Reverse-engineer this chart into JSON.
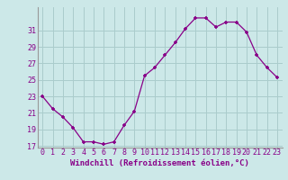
{
  "x": [
    0,
    1,
    2,
    3,
    4,
    5,
    6,
    7,
    8,
    9,
    10,
    11,
    12,
    13,
    14,
    15,
    16,
    17,
    18,
    19,
    20,
    21,
    22,
    23
  ],
  "y": [
    23,
    21.5,
    20.5,
    19.2,
    17.5,
    17.5,
    17.2,
    17.5,
    19.5,
    21.2,
    25.5,
    26.5,
    28.0,
    29.5,
    31.2,
    32.5,
    32.5,
    31.4,
    32.0,
    32.0,
    30.8,
    28.0,
    26.5,
    25.3
  ],
  "line_color": "#880088",
  "marker": "+",
  "bg_color": "#cce8e8",
  "grid_color": "#aacccc",
  "axis_label_color": "#880088",
  "tick_label_color": "#880088",
  "xlabel": "Windchill (Refroidissement éolien,°C)",
  "ylabel": "",
  "ylim": [
    17,
    33
  ],
  "xlim": [
    -0.5,
    23.5
  ],
  "yticks": [
    17,
    19,
    21,
    23,
    25,
    27,
    29,
    31
  ],
  "xticks": [
    0,
    1,
    2,
    3,
    4,
    5,
    6,
    7,
    8,
    9,
    10,
    11,
    12,
    13,
    14,
    15,
    16,
    17,
    18,
    19,
    20,
    21,
    22,
    23
  ],
  "label_fontsize": 6.5,
  "tick_fontsize": 6.0
}
